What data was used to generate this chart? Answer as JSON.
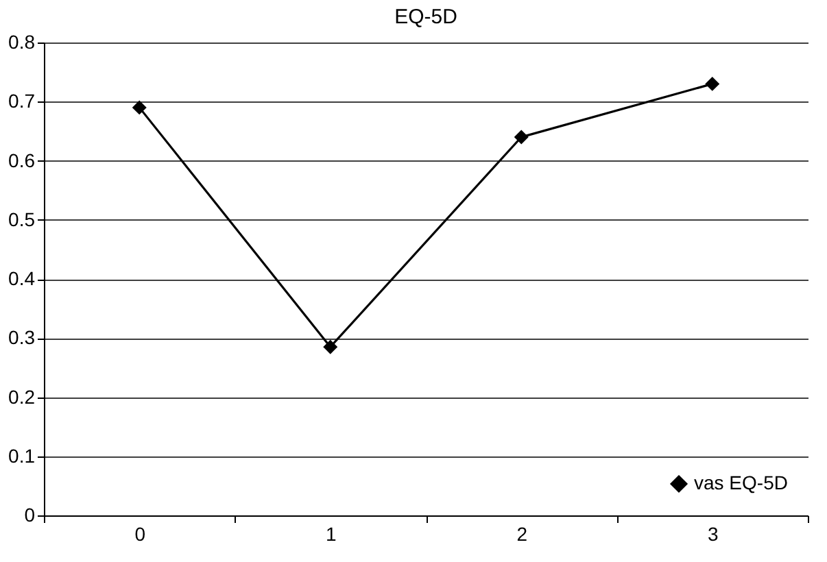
{
  "chart_data": {
    "type": "line",
    "title": "EQ-5D",
    "categories": [
      "0",
      "1",
      "2",
      "3"
    ],
    "series": [
      {
        "name": "vas EQ-5D",
        "color": "#000000",
        "values": [
          0.69,
          0.285,
          0.64,
          0.73
        ]
      }
    ],
    "ylim": [
      0,
      0.8
    ],
    "yticks": [
      0,
      0.1,
      0.2,
      0.3,
      0.4,
      0.5,
      0.6,
      0.7,
      0.8
    ],
    "grid": "y",
    "legend": "bottom right",
    "marker": "diamond",
    "line_style": "solid"
  }
}
